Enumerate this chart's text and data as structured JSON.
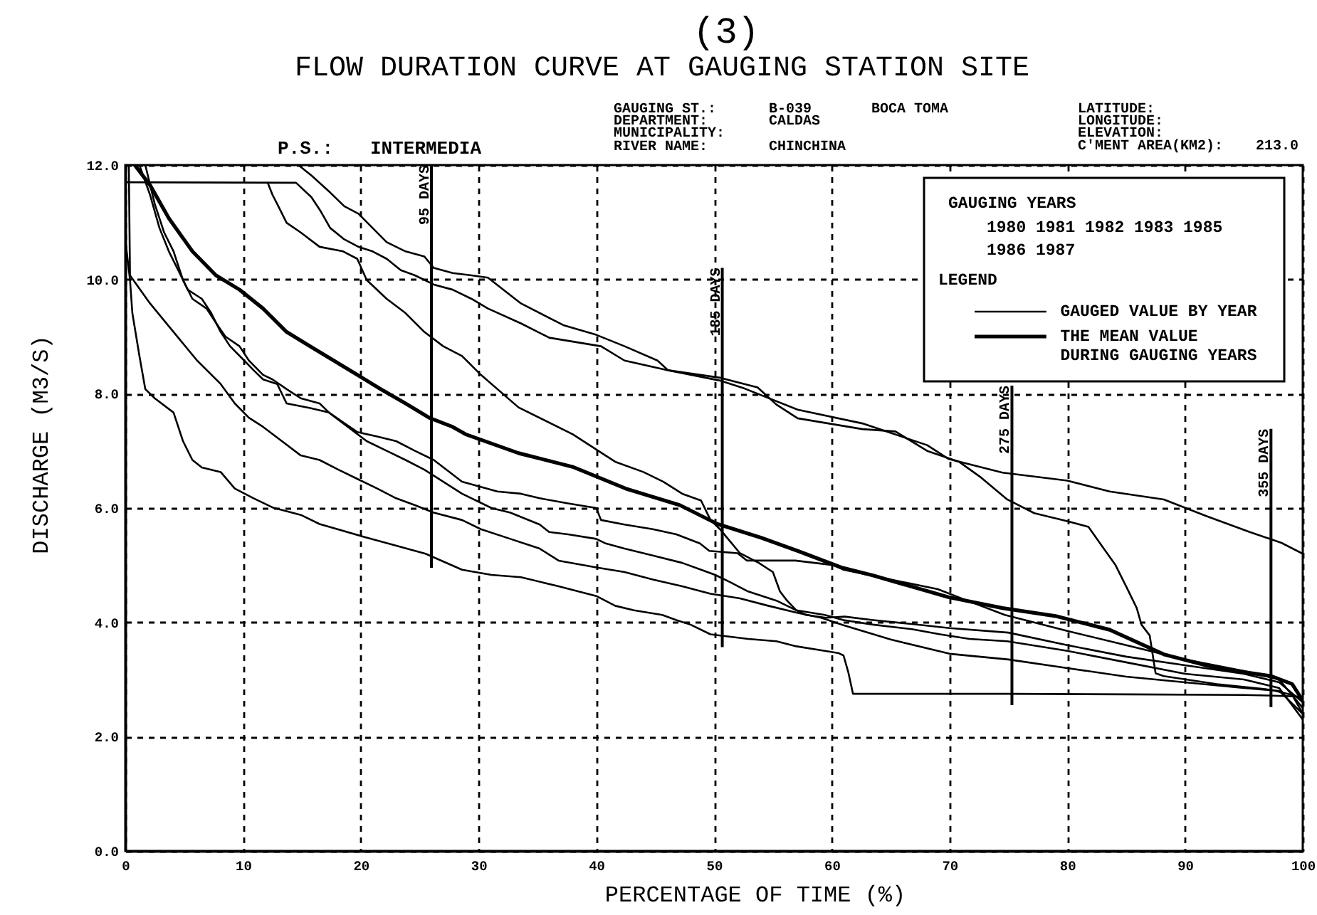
{
  "chart_data": {
    "type": "line",
    "title": "FLOW DURATION CURVE AT GAUGING STATION SITE",
    "xlabel": "PERCENTAGE OF TIME (%)",
    "ylabel": "DISCHARGE (M3/S)",
    "legend_title": "LEGEND",
    "annotations": [
      "(3)",
      "GAUGING ST.:",
      "B-039",
      "BOCA TOMA",
      "DEPARTMENT:",
      "CALDAS",
      "MUNICIPALITY:",
      "RIVER NAME:",
      "CHINCHINA",
      "LATITUDE:",
      "LONGITUDE:",
      "ELEVATION:",
      "C'MENT AREA(KM2):",
      "213.0",
      "P.S.:",
      "INTERMEDIA",
      "GAUGING YEARS",
      "1980 1981 1982 1983 1985",
      "1986 1987"
    ],
    "xlim": [
      0,
      100
    ],
    "ylim": [
      0,
      12
    ],
    "xticks": [
      0,
      10,
      20,
      30,
      40,
      50,
      60,
      70,
      80,
      90,
      100
    ],
    "yticks": [
      {
        "value": 0,
        "label": "0.0"
      },
      {
        "value": 2,
        "label": "2.0"
      },
      {
        "value": 4,
        "label": "4.0"
      },
      {
        "value": 6,
        "label": "6.0"
      },
      {
        "value": 8,
        "label": "8.0"
      },
      {
        "value": 10,
        "label": "10.0"
      },
      {
        "value": 12,
        "label": "12.0"
      }
    ],
    "grid": true,
    "legend": "top right",
    "ref_lines": [
      {
        "axis": "x",
        "value": 26.0,
        "label": "95 DAYS"
      },
      {
        "axis": "x",
        "value": 50.7,
        "label": "185 DAYS"
      },
      {
        "axis": "x",
        "value": 75.3,
        "label": "275 DAYS"
      },
      {
        "axis": "x",
        "value": 97.3,
        "label": "355 DAYS"
      }
    ],
    "series": [
      {
        "name": "GAUGED VALUE BY YEAR",
        "color": "#000000",
        "x": [
          14.7,
          15.8,
          17.4,
          18.6,
          19.8,
          21.0,
          22.2,
          23.8,
          25.4,
          26.2,
          27.8,
          29.4,
          30.8,
          33.6,
          37.2,
          40,
          42.4,
          45.2,
          46.1,
          50.5,
          52.6,
          57.1,
          62.6,
          68.1,
          69.9,
          74.5,
          80,
          83.6,
          88.2,
          91.8,
          95.5,
          98.2,
          100
        ],
        "values": [
          12,
          11.82,
          11.52,
          11.28,
          11.15,
          10.9,
          10.65,
          10.49,
          10.4,
          10.2,
          10.11,
          10.07,
          10.03,
          9.58,
          9.2,
          9.03,
          8.83,
          8.58,
          8.41,
          8.23,
          8.09,
          7.72,
          7.48,
          7.1,
          6.86,
          6.62,
          6.48,
          6.29,
          6.15,
          5.86,
          5.58,
          5.39,
          5.2
        ]
      },
      {
        "color": "#000000",
        "x": [
          0,
          14.5,
          15.8,
          16.6,
          17.4,
          18.6,
          19.8,
          21,
          22.2,
          23.4,
          24.6,
          26.2,
          27.8,
          29.4,
          30.8,
          33.6,
          36,
          40.4,
          42.4,
          46.1,
          50.5,
          53.7,
          55.3,
          57.1,
          62.6,
          65.4,
          68.1,
          70.8,
          72.7,
          74.9,
          77.2,
          80,
          81.8,
          83.1,
          84.1,
          85,
          85.9,
          86.3,
          87,
          87.5,
          88.2,
          92.7,
          97.3,
          99.1,
          100
        ],
        "values": [
          11.7,
          11.69,
          11.44,
          11.19,
          10.9,
          10.7,
          10.57,
          10.49,
          10.36,
          10.16,
          10.07,
          9.91,
          9.82,
          9.66,
          9.49,
          9.23,
          8.98,
          8.83,
          8.58,
          8.41,
          8.28,
          8.11,
          7.81,
          7.57,
          7.38,
          7.34,
          7.0,
          6.81,
          6.53,
          6.15,
          5.91,
          5.77,
          5.67,
          5.29,
          5.0,
          4.63,
          4.25,
          3.96,
          3.77,
          3.11,
          3.06,
          2.92,
          2.82,
          2.73,
          2.4
        ]
      },
      {
        "color": "#000000",
        "x": [
          12.1,
          12.5,
          12.9,
          13.7,
          14.9,
          16.5,
          18.5,
          19.7,
          20.5,
          22.2,
          23.8,
          25.4,
          27,
          28.6,
          30.2,
          33.4,
          38,
          41.6,
          44,
          45.7,
          47.3,
          48.9,
          49.7,
          50.5,
          52.2,
          53.8,
          55,
          55.6,
          56.2,
          57,
          57.8,
          59.5,
          61.1,
          63.5,
          66.8,
          70,
          75,
          80,
          85,
          90,
          95,
          98,
          100
        ],
        "values": [
          11.69,
          11.48,
          11.32,
          10.99,
          10.82,
          10.57,
          10.49,
          10.36,
          9.99,
          9.66,
          9.41,
          9.08,
          8.83,
          8.66,
          8.33,
          7.76,
          7.29,
          6.81,
          6.63,
          6.46,
          6.25,
          6.13,
          5.79,
          5.63,
          5.21,
          5.04,
          4.88,
          4.54,
          4.38,
          4.21,
          4.13,
          4.08,
          4.1,
          4.04,
          3.97,
          3.9,
          3.82,
          3.6,
          3.4,
          3.25,
          3.1,
          2.95,
          2.6
        ]
      },
      {
        "color": "#000000",
        "x": [
          1.2,
          2.1,
          2.9,
          3.7,
          4.5,
          5.3,
          6.5,
          7.3,
          8.1,
          8.9,
          10.1,
          10.9,
          11.7,
          12.9,
          13.7,
          15.7,
          17.3,
          18.5,
          19.7,
          21.4,
          23,
          24.6,
          26.2,
          28.6,
          31.6,
          33.6,
          35.2,
          37.6,
          40,
          40.4,
          42.4,
          44.8,
          46.8,
          48.8,
          49.6,
          52,
          52.8,
          56.9,
          60.2,
          61,
          65,
          69,
          71.5,
          74.7,
          80,
          85,
          90,
          95,
          98,
          100
        ],
        "values": [
          12,
          11.48,
          10.9,
          10.49,
          10.16,
          9.82,
          9.66,
          9.41,
          9.08,
          8.83,
          8.58,
          8.41,
          8.25,
          8.17,
          7.83,
          7.75,
          7.67,
          7.5,
          7.33,
          7.25,
          7.17,
          7.0,
          6.84,
          6.46,
          6.29,
          6.25,
          6.17,
          6.08,
          6.0,
          5.79,
          5.71,
          5.63,
          5.54,
          5.38,
          5.25,
          5.21,
          5.08,
          5.08,
          5.0,
          4.92,
          4.75,
          4.58,
          4.38,
          4.13,
          3.85,
          3.6,
          3.35,
          3.15,
          3.0,
          2.5
        ]
      },
      {
        "color": "#000000",
        "x": [
          1.7,
          2.5,
          3.3,
          4.1,
          4.9,
          5.7,
          6.9,
          7.7,
          8.5,
          9.7,
          10.5,
          11.7,
          12.5,
          13.7,
          14.9,
          16.5,
          17.3,
          18.9,
          20.5,
          22.2,
          23.8,
          25.4,
          28.6,
          31.1,
          32.7,
          35.2,
          36,
          37.6,
          40,
          40.8,
          42.4,
          44.8,
          47.3,
          48.9,
          50.1,
          51.3,
          52.9,
          55.3,
          57,
          59.4,
          61,
          63.5,
          66.8,
          69.2,
          71.7,
          74.9,
          80,
          85,
          90,
          95,
          98,
          100
        ],
        "values": [
          12,
          11.32,
          10.82,
          10.49,
          9.99,
          9.66,
          9.49,
          9.24,
          9.0,
          8.83,
          8.58,
          8.33,
          8.25,
          8.08,
          7.92,
          7.83,
          7.67,
          7.42,
          7.17,
          7.0,
          6.84,
          6.67,
          6.25,
          6.0,
          5.92,
          5.71,
          5.58,
          5.54,
          5.46,
          5.38,
          5.29,
          5.17,
          5.04,
          4.92,
          4.83,
          4.71,
          4.54,
          4.38,
          4.21,
          4.13,
          4.04,
          3.96,
          3.88,
          3.79,
          3.71,
          3.67,
          3.5,
          3.3,
          3.1,
          3.0,
          2.85,
          2.3
        ]
      },
      {
        "color": "#000000",
        "x": [
          0.3,
          0.4,
          2.1,
          4.1,
          6.1,
          8.1,
          9.3,
          10.5,
          11.7,
          13.3,
          14.9,
          16.5,
          18.1,
          19.7,
          21.4,
          23,
          24.6,
          26.2,
          28.6,
          30.2,
          32.7,
          35.2,
          36.8,
          40,
          42.4,
          44.8,
          47.3,
          49.7,
          52.2,
          54.6,
          57,
          59.1,
          61,
          65,
          70,
          75,
          80,
          85,
          90,
          95,
          98,
          100
        ],
        "values": [
          12,
          10.07,
          9.58,
          9.08,
          8.58,
          8.17,
          7.83,
          7.58,
          7.42,
          7.17,
          6.92,
          6.84,
          6.67,
          6.51,
          6.34,
          6.17,
          6.05,
          5.92,
          5.79,
          5.63,
          5.46,
          5.29,
          5.08,
          4.96,
          4.88,
          4.75,
          4.63,
          4.5,
          4.42,
          4.29,
          4.17,
          4.08,
          3.95,
          3.7,
          3.45,
          3.35,
          3.2,
          3.05,
          2.95,
          2.85,
          2.8,
          2.4
        ]
      },
      {
        "color": "#000000",
        "x": [
          0,
          0.4,
          0.6,
          1.2,
          1.7,
          2.5,
          4.1,
          4.9,
          5.7,
          6.5,
          8.1,
          9.3,
          10.9,
          12.5,
          14.9,
          16.5,
          20.2,
          25.5,
          28.6,
          31.1,
          33.6,
          36.8,
          40,
          41.6,
          43.2,
          45.6,
          46.8,
          48,
          49.7,
          51.3,
          52.9,
          55.3,
          57,
          59.4,
          60.6,
          61,
          61.4,
          61.8,
          65,
          75,
          85,
          95,
          97,
          100
        ],
        "values": [
          10.7,
          9.99,
          9.41,
          8.66,
          8.08,
          7.92,
          7.67,
          7.17,
          6.84,
          6.71,
          6.63,
          6.34,
          6.17,
          6.01,
          5.88,
          5.72,
          5.5,
          5.2,
          4.92,
          4.83,
          4.79,
          4.63,
          4.46,
          4.29,
          4.21,
          4.13,
          4.04,
          3.96,
          3.79,
          3.75,
          3.71,
          3.67,
          3.58,
          3.5,
          3.46,
          3.42,
          3.13,
          2.75,
          2.75,
          2.75,
          2.74,
          2.73,
          2.72,
          2.7
        ]
      },
      {
        "name": "THE MEAN VALUE DURING GAUGING YEARS",
        "color": "#000000",
        "x": [
          0.8,
          2.1,
          3.7,
          5.7,
          7.7,
          9.7,
          11.7,
          13.7,
          15.7,
          17.7,
          19.7,
          21.7,
          23.8,
          25.8,
          27.8,
          28.9,
          33.4,
          38,
          42.5,
          47.1,
          50.3,
          54,
          57.1,
          60.8,
          63.5,
          66.7,
          69.9,
          74.5,
          79,
          83.6,
          88.2,
          92.7,
          97.3,
          99.1,
          100
        ],
        "values": [
          12,
          11.65,
          11.07,
          10.49,
          10.07,
          9.82,
          9.49,
          9.08,
          8.83,
          8.58,
          8.33,
          8.08,
          7.83,
          7.58,
          7.42,
          7.29,
          6.96,
          6.72,
          6.34,
          6.05,
          5.72,
          5.48,
          5.25,
          4.96,
          4.82,
          4.63,
          4.44,
          4.25,
          4.11,
          3.87,
          3.44,
          3.2,
          3.06,
          2.92,
          2.63
        ]
      }
    ]
  }
}
